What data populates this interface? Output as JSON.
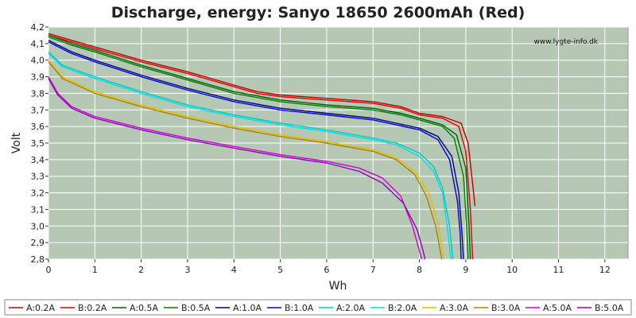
{
  "chart_data": {
    "type": "line",
    "title": "Discharge, energy: Sanyo 18650 2600mAh (Red)",
    "xlabel": "Wh",
    "ylabel": "Volt",
    "watermark": "www.lygte-info.dk",
    "xlim": [
      0,
      12.5
    ],
    "ylim": [
      2.8,
      4.2
    ],
    "xticks": [
      "0",
      "1",
      "2",
      "3",
      "4",
      "5",
      "6",
      "7",
      "8",
      "9",
      "10",
      "11",
      "12"
    ],
    "yticks": [
      "2,8",
      "2,9",
      "3,0",
      "3,1",
      "3,2",
      "3,3",
      "3,4",
      "3,5",
      "3,6",
      "3,7",
      "3,8",
      "3,9",
      "4,0",
      "4,1",
      "4,2"
    ],
    "grid": true,
    "legend_position": "bottom",
    "plot_background": "#b4c8b4",
    "series": [
      {
        "name": "A:0.2A",
        "color": "#c00000",
        "points": [
          [
            0,
            4.16
          ],
          [
            0.5,
            4.12
          ],
          [
            1,
            4.08
          ],
          [
            2,
            4.0
          ],
          [
            3,
            3.93
          ],
          [
            4,
            3.85
          ],
          [
            4.5,
            3.81
          ],
          [
            5,
            3.79
          ],
          [
            6,
            3.77
          ],
          [
            7,
            3.75
          ],
          [
            7.6,
            3.72
          ],
          [
            8,
            3.68
          ],
          [
            8.5,
            3.66
          ],
          [
            8.9,
            3.62
          ],
          [
            9.05,
            3.5
          ],
          [
            9.15,
            3.25
          ],
          [
            9.2,
            3.12
          ]
        ]
      },
      {
        "name": "B:0.2A",
        "color": "#e00000",
        "points": [
          [
            0,
            4.15
          ],
          [
            0.5,
            4.11
          ],
          [
            1,
            4.07
          ],
          [
            2,
            3.99
          ],
          [
            3,
            3.92
          ],
          [
            4,
            3.84
          ],
          [
            4.5,
            3.8
          ],
          [
            5,
            3.78
          ],
          [
            6,
            3.76
          ],
          [
            7,
            3.74
          ],
          [
            7.6,
            3.71
          ],
          [
            8,
            3.67
          ],
          [
            8.5,
            3.65
          ],
          [
            8.85,
            3.6
          ],
          [
            9.0,
            3.45
          ],
          [
            9.1,
            3.1
          ],
          [
            9.15,
            2.8
          ]
        ]
      },
      {
        "name": "A:0.5A",
        "color": "#006000",
        "points": [
          [
            0,
            4.15
          ],
          [
            0.5,
            4.1
          ],
          [
            1,
            4.06
          ],
          [
            2,
            3.97
          ],
          [
            3,
            3.89
          ],
          [
            4,
            3.81
          ],
          [
            5,
            3.76
          ],
          [
            6,
            3.73
          ],
          [
            7,
            3.71
          ],
          [
            7.6,
            3.68
          ],
          [
            8,
            3.65
          ],
          [
            8.5,
            3.61
          ],
          [
            8.8,
            3.55
          ],
          [
            9.0,
            3.35
          ],
          [
            9.07,
            3.0
          ],
          [
            9.1,
            2.8
          ]
        ]
      },
      {
        "name": "B:0.5A",
        "color": "#008000",
        "points": [
          [
            0,
            4.14
          ],
          [
            0.5,
            4.09
          ],
          [
            1,
            4.05
          ],
          [
            2,
            3.96
          ],
          [
            3,
            3.88
          ],
          [
            4,
            3.8
          ],
          [
            5,
            3.75
          ],
          [
            6,
            3.72
          ],
          [
            7,
            3.7
          ],
          [
            7.6,
            3.67
          ],
          [
            8,
            3.64
          ],
          [
            8.5,
            3.6
          ],
          [
            8.75,
            3.53
          ],
          [
            8.95,
            3.3
          ],
          [
            9.02,
            3.0
          ],
          [
            9.05,
            2.8
          ]
        ]
      },
      {
        "name": "A:1.0A",
        "color": "#000080",
        "points": [
          [
            0,
            4.12
          ],
          [
            0.5,
            4.05
          ],
          [
            1,
            4.0
          ],
          [
            2,
            3.91
          ],
          [
            3,
            3.83
          ],
          [
            4,
            3.76
          ],
          [
            5,
            3.71
          ],
          [
            6,
            3.68
          ],
          [
            7,
            3.65
          ],
          [
            7.5,
            3.62
          ],
          [
            8,
            3.59
          ],
          [
            8.4,
            3.54
          ],
          [
            8.7,
            3.42
          ],
          [
            8.85,
            3.2
          ],
          [
            8.92,
            2.95
          ],
          [
            8.95,
            2.8
          ]
        ]
      },
      {
        "name": "B:1.0A",
        "color": "#0000e0",
        "points": [
          [
            0,
            4.11
          ],
          [
            0.5,
            4.04
          ],
          [
            1,
            3.99
          ],
          [
            2,
            3.9
          ],
          [
            3,
            3.82
          ],
          [
            4,
            3.75
          ],
          [
            5,
            3.7
          ],
          [
            6,
            3.67
          ],
          [
            7,
            3.64
          ],
          [
            7.5,
            3.61
          ],
          [
            8,
            3.58
          ],
          [
            8.4,
            3.52
          ],
          [
            8.65,
            3.4
          ],
          [
            8.82,
            3.15
          ],
          [
            8.88,
            2.95
          ],
          [
            8.9,
            2.8
          ]
        ]
      },
      {
        "name": "A:2.0A",
        "color": "#00c8c8",
        "points": [
          [
            0,
            4.05
          ],
          [
            0.3,
            3.97
          ],
          [
            1,
            3.9
          ],
          [
            2,
            3.81
          ],
          [
            3,
            3.73
          ],
          [
            4,
            3.67
          ],
          [
            5,
            3.62
          ],
          [
            6,
            3.58
          ],
          [
            7,
            3.53
          ],
          [
            7.5,
            3.5
          ],
          [
            8,
            3.44
          ],
          [
            8.3,
            3.36
          ],
          [
            8.5,
            3.23
          ],
          [
            8.65,
            3.0
          ],
          [
            8.72,
            2.8
          ]
        ]
      },
      {
        "name": "B:2.0A",
        "color": "#00e0e0",
        "points": [
          [
            0,
            4.04
          ],
          [
            0.3,
            3.96
          ],
          [
            1,
            3.89
          ],
          [
            2,
            3.8
          ],
          [
            3,
            3.72
          ],
          [
            4,
            3.66
          ],
          [
            5,
            3.61
          ],
          [
            6,
            3.57
          ],
          [
            7,
            3.52
          ],
          [
            7.5,
            3.49
          ],
          [
            8,
            3.42
          ],
          [
            8.3,
            3.33
          ],
          [
            8.5,
            3.2
          ],
          [
            8.62,
            2.95
          ],
          [
            8.68,
            2.8
          ]
        ]
      },
      {
        "name": "A:3.0A",
        "color": "#e0c000",
        "points": [
          [
            0,
            4.0
          ],
          [
            0.3,
            3.9
          ],
          [
            1,
            3.81
          ],
          [
            2,
            3.73
          ],
          [
            3,
            3.66
          ],
          [
            4,
            3.6
          ],
          [
            5,
            3.55
          ],
          [
            6,
            3.51
          ],
          [
            7,
            3.46
          ],
          [
            7.5,
            3.41
          ],
          [
            7.9,
            3.33
          ],
          [
            8.2,
            3.2
          ],
          [
            8.4,
            3.02
          ],
          [
            8.5,
            2.85
          ],
          [
            8.52,
            2.8
          ]
        ]
      },
      {
        "name": "B:3.0A",
        "color": "#b08000",
        "points": [
          [
            0,
            3.99
          ],
          [
            0.3,
            3.89
          ],
          [
            1,
            3.8
          ],
          [
            2,
            3.72
          ],
          [
            3,
            3.65
          ],
          [
            4,
            3.59
          ],
          [
            5,
            3.54
          ],
          [
            6,
            3.5
          ],
          [
            7,
            3.45
          ],
          [
            7.5,
            3.4
          ],
          [
            7.9,
            3.31
          ],
          [
            8.15,
            3.18
          ],
          [
            8.35,
            3.0
          ],
          [
            8.45,
            2.85
          ],
          [
            8.48,
            2.8
          ]
        ]
      },
      {
        "name": "A:5.0A",
        "color": "#d000d0",
        "points": [
          [
            0,
            3.9
          ],
          [
            0.2,
            3.8
          ],
          [
            0.5,
            3.72
          ],
          [
            1,
            3.66
          ],
          [
            2,
            3.59
          ],
          [
            3,
            3.53
          ],
          [
            4,
            3.48
          ],
          [
            5,
            3.43
          ],
          [
            6,
            3.39
          ],
          [
            6.7,
            3.35
          ],
          [
            7.2,
            3.29
          ],
          [
            7.6,
            3.18
          ],
          [
            7.85,
            3.0
          ],
          [
            8.0,
            2.85
          ],
          [
            8.05,
            2.8
          ]
        ]
      },
      {
        "name": "B:5.0A",
        "color": "#9000c0",
        "points": [
          [
            0,
            3.89
          ],
          [
            0.2,
            3.79
          ],
          [
            0.5,
            3.71
          ],
          [
            1,
            3.65
          ],
          [
            2,
            3.58
          ],
          [
            3,
            3.52
          ],
          [
            4,
            3.47
          ],
          [
            5,
            3.42
          ],
          [
            6,
            3.38
          ],
          [
            6.7,
            3.33
          ],
          [
            7.2,
            3.26
          ],
          [
            7.65,
            3.14
          ],
          [
            7.95,
            2.98
          ],
          [
            8.08,
            2.85
          ],
          [
            8.12,
            2.8
          ]
        ]
      }
    ]
  }
}
